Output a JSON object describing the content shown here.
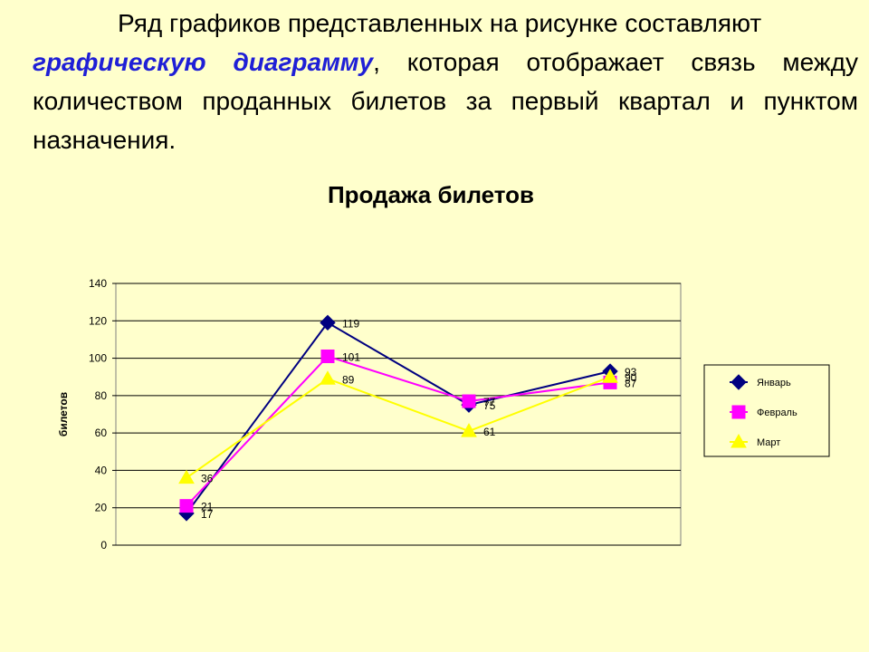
{
  "intro": {
    "part1": "Ряд графиков представленных на рисунке составляют",
    "emphasis": "графическую диаграмму",
    "part2": ", которая отображает связь между количеством проданных билетов за первый квартал и пунктом назначения."
  },
  "chart_data": {
    "type": "line",
    "title": "Продажа билетов",
    "xlabel": "",
    "ylabel": "билетов",
    "ylim": [
      0,
      140
    ],
    "yticks": [
      0,
      20,
      40,
      60,
      80,
      100,
      120,
      140
    ],
    "x": [
      1,
      2,
      3,
      4
    ],
    "grid": "horizontal",
    "legend_position": "right",
    "series": [
      {
        "name": "Январь",
        "values": [
          17,
          119,
          75,
          93
        ],
        "color": "#000080",
        "marker": "diamond"
      },
      {
        "name": "Февраль",
        "values": [
          21,
          101,
          77,
          87
        ],
        "color": "#ff00ff",
        "marker": "square"
      },
      {
        "name": "Март",
        "values": [
          36,
          89,
          61,
          90
        ],
        "color": "#ffff00",
        "marker": "triangle"
      }
    ]
  }
}
